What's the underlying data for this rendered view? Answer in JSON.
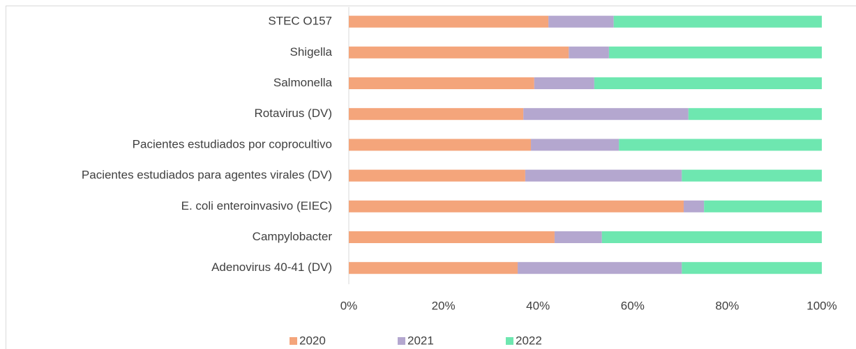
{
  "chart_data": {
    "type": "stacked-barh",
    "categories": [
      "STEC O157",
      "Shigella",
      "Salmonella",
      "Rotavirus (DV)",
      "Pacientes estudiados por coprocultivo",
      "Pacientes estudiados para agentes virales (DV)",
      "E. coli enteroinvasivo (EIEC)",
      "Campylobacter",
      "Adenovirus 40-41 (DV)"
    ],
    "series": [
      {
        "name": "2020",
        "color": "#f4a57b",
        "values": [
          42.2,
          46.5,
          39.2,
          36.9,
          38.5,
          37.3,
          70.8,
          43.5,
          35.7
        ]
      },
      {
        "name": "2021",
        "color": "#b4a7cf",
        "values": [
          13.8,
          8.5,
          12.7,
          34.9,
          18.6,
          33.1,
          4.3,
          10.0,
          34.7
        ]
      },
      {
        "name": "2022",
        "color": "#6ee7b0",
        "values": [
          44.0,
          45.0,
          48.1,
          28.2,
          42.9,
          29.6,
          24.9,
          46.5,
          29.6
        ]
      }
    ],
    "xlim": [
      0,
      100
    ],
    "xticks": [
      {
        "value": 0,
        "label": "0%"
      },
      {
        "value": 20,
        "label": "20%"
      },
      {
        "value": 40,
        "label": "40%"
      },
      {
        "value": 60,
        "label": "60%"
      },
      {
        "value": 80,
        "label": "80%"
      },
      {
        "value": 100,
        "label": "100%"
      }
    ],
    "legend": "bottom"
  }
}
